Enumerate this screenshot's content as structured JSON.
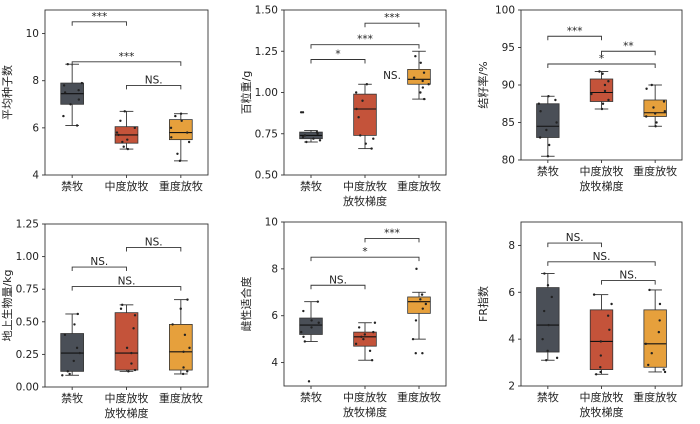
{
  "chart_data": [
    {
      "type": "box",
      "ylabel": "平均种子数",
      "xlabel": "",
      "ylim": [
        4,
        11
      ],
      "yticks": [
        "4",
        "6",
        "8",
        "10"
      ],
      "categories": [
        "禁牧",
        "中度放牧",
        "重度放牧"
      ],
      "colors": [
        "#4a4f57",
        "#c4533a",
        "#e6a03c"
      ],
      "boxes": [
        {
          "min": 6.1,
          "q1": 7.0,
          "median": 7.45,
          "q3": 7.9,
          "max": 8.7,
          "points": [
            6.1,
            6.5,
            7.0,
            7.2,
            7.5,
            7.6,
            7.8,
            7.9,
            8.7
          ]
        },
        {
          "min": 5.1,
          "q1": 5.35,
          "median": 5.7,
          "q3": 6.05,
          "max": 6.7,
          "points": [
            5.1,
            5.2,
            5.4,
            5.5,
            5.7,
            5.8,
            6.0,
            6.3,
            6.7
          ]
        },
        {
          "min": 4.6,
          "q1": 5.5,
          "median": 5.8,
          "q3": 6.35,
          "max": 6.6,
          "points": [
            4.6,
            4.9,
            5.4,
            5.6,
            5.8,
            6.0,
            6.3,
            6.5,
            6.6
          ]
        }
      ],
      "significance": [
        {
          "from": 0,
          "to": 1,
          "label": "***",
          "y": 10.5
        },
        {
          "from": 0,
          "to": 2,
          "label": "***",
          "y": 8.8
        },
        {
          "from": 1,
          "to": 2,
          "label": "NS.",
          "y": 7.8
        }
      ]
    },
    {
      "type": "box",
      "ylabel": "百粒重/g",
      "xlabel": "放牧梯度",
      "ylim": [
        0.5,
        1.5
      ],
      "yticks": [
        "0.50",
        "0.75",
        "1.00",
        "1.25",
        "1.50"
      ],
      "categories": [
        "禁牧",
        "中度放牧",
        "重度放牧"
      ],
      "colors": [
        "#4a4f57",
        "#c4533a",
        "#e6a03c"
      ],
      "boxes": [
        {
          "min": 0.7,
          "q1": 0.72,
          "median": 0.74,
          "q3": 0.76,
          "max": 0.77,
          "points": [
            0.7,
            0.71,
            0.72,
            0.73,
            0.74,
            0.75,
            0.76,
            0.88,
            0.88
          ]
        },
        {
          "min": 0.66,
          "q1": 0.74,
          "median": 0.9,
          "q3": 0.99,
          "max": 1.05,
          "points": [
            0.66,
            0.69,
            0.72,
            0.74,
            0.85,
            0.9,
            0.95,
            1.0,
            1.05
          ]
        },
        {
          "min": 0.96,
          "q1": 1.05,
          "median": 1.08,
          "q3": 1.14,
          "max": 1.25,
          "points": [
            0.96,
            1.0,
            1.03,
            1.05,
            1.07,
            1.09,
            1.12,
            1.18,
            1.22
          ]
        }
      ],
      "significance": [
        {
          "from": 1,
          "to": 2,
          "label": "***",
          "y": 1.42
        },
        {
          "from": 0,
          "to": 2,
          "label": "***",
          "y": 1.29
        },
        {
          "from": 0,
          "to": 1,
          "label": "*",
          "y": 1.2
        },
        {
          "label": "NS.",
          "y": 1.1,
          "x_between": [
            1,
            2
          ]
        }
      ]
    },
    {
      "type": "box",
      "ylabel": "结籽率/%",
      "xlabel": "放牧梯度",
      "ylim": [
        80,
        100
      ],
      "yticks": [
        "80",
        "85",
        "90",
        "95",
        "100"
      ],
      "categories": [
        "禁牧",
        "中度放牧",
        "重度放牧"
      ],
      "colors": [
        "#4a4f57",
        "#c4533a",
        "#e6a03c"
      ],
      "boxes": [
        {
          "min": 80.5,
          "q1": 83.0,
          "median": 84.5,
          "q3": 87.5,
          "max": 88.5,
          "points": [
            80.5,
            82.0,
            83.0,
            84.0,
            85.0,
            86.5,
            87.5,
            88.0,
            88.5
          ]
        },
        {
          "min": 86.8,
          "q1": 87.8,
          "median": 89.0,
          "q3": 90.8,
          "max": 91.8,
          "points": [
            86.8,
            87.5,
            88.0,
            88.8,
            89.2,
            90.0,
            90.5,
            91.5,
            91.8
          ]
        },
        {
          "min": 84.5,
          "q1": 85.8,
          "median": 86.3,
          "q3": 88.0,
          "max": 90.0,
          "points": [
            84.5,
            85.0,
            85.8,
            86.2,
            86.5,
            87.0,
            87.8,
            89.5,
            90.0
          ]
        }
      ],
      "significance": [
        {
          "from": 0,
          "to": 1,
          "label": "***",
          "y": 96.5
        },
        {
          "from": 1,
          "to": 2,
          "label": "**",
          "y": 94.5
        },
        {
          "from": 0,
          "to": 2,
          "label": "*",
          "y": 92.8
        }
      ]
    },
    {
      "type": "box",
      "ylabel": "地上生物量/kg",
      "xlabel": "放牧梯度",
      "ylim": [
        0,
        1.25
      ],
      "yticks": [
        "0.00",
        "0.25",
        "0.50",
        "0.75",
        "1.00",
        "1.25"
      ],
      "categories": [
        "禁牧",
        "中度放牧",
        "重度放牧"
      ],
      "colors": [
        "#4a4f57",
        "#c4533a",
        "#e6a03c"
      ],
      "boxes": [
        {
          "min": 0.09,
          "q1": 0.12,
          "median": 0.26,
          "q3": 0.41,
          "max": 0.56,
          "points": [
            0.09,
            0.1,
            0.12,
            0.2,
            0.26,
            0.3,
            0.4,
            0.48,
            0.56
          ]
        },
        {
          "min": 0.12,
          "q1": 0.13,
          "median": 0.26,
          "q3": 0.57,
          "max": 0.63,
          "points": [
            0.12,
            0.13,
            0.18,
            0.26,
            0.3,
            0.45,
            0.55,
            0.6,
            0.63
          ]
        },
        {
          "min": 0.1,
          "q1": 0.13,
          "median": 0.27,
          "q3": 0.48,
          "max": 0.67,
          "points": [
            0.1,
            0.12,
            0.15,
            0.27,
            0.3,
            0.4,
            0.48,
            0.6,
            0.67
          ]
        }
      ],
      "significance": [
        {
          "from": 1,
          "to": 2,
          "label": "NS.",
          "y": 1.07
        },
        {
          "from": 0,
          "to": 1,
          "label": "NS.",
          "y": 0.92
        },
        {
          "from": 0,
          "to": 2,
          "label": "NS.",
          "y": 0.77
        }
      ]
    },
    {
      "type": "box",
      "ylabel": "雌性适合度",
      "xlabel": "放牧梯度",
      "ylim": [
        3,
        10
      ],
      "yticks": [
        "4",
        "6",
        "8",
        "10"
      ],
      "categories": [
        "禁牧",
        "中度放牧",
        "重度放牧"
      ],
      "colors": [
        "#4a4f57",
        "#c4533a",
        "#e6a03c"
      ],
      "boxes": [
        {
          "min": 4.9,
          "q1": 5.2,
          "median": 5.6,
          "q3": 5.9,
          "max": 6.6,
          "points": [
            3.2,
            4.9,
            5.1,
            5.3,
            5.5,
            5.7,
            5.8,
            6.2,
            6.6
          ]
        },
        {
          "min": 4.1,
          "q1": 4.7,
          "median": 5.1,
          "q3": 5.3,
          "max": 5.7,
          "points": [
            4.1,
            4.5,
            4.8,
            5.0,
            5.1,
            5.2,
            5.3,
            5.5,
            5.7
          ]
        },
        {
          "min": 5.0,
          "q1": 6.1,
          "median": 6.6,
          "q3": 6.8,
          "max": 7.0,
          "points": [
            4.4,
            4.4,
            5.0,
            5.8,
            6.3,
            6.5,
            6.7,
            6.9,
            8.0
          ]
        }
      ],
      "significance": [
        {
          "from": 1,
          "to": 2,
          "label": "***",
          "y": 9.3
        },
        {
          "from": 0,
          "to": 2,
          "label": "*",
          "y": 8.5
        },
        {
          "from": 0,
          "to": 1,
          "label": "NS.",
          "y": 7.3
        }
      ]
    },
    {
      "type": "box",
      "ylabel": "FR指数",
      "xlabel": "放牧梯度",
      "ylim": [
        2,
        9
      ],
      "yticks": [
        "2",
        "4",
        "6",
        "8"
      ],
      "categories": [
        "禁牧",
        "中度放牧",
        "重度放牧"
      ],
      "colors": [
        "#4a4f57",
        "#c4533a",
        "#e6a03c"
      ],
      "boxes": [
        {
          "min": 3.1,
          "q1": 3.45,
          "median": 4.6,
          "q3": 6.2,
          "max": 6.8,
          "points": [
            3.1,
            3.2,
            3.5,
            4.0,
            4.6,
            5.2,
            5.8,
            6.3,
            6.8
          ]
        },
        {
          "min": 2.5,
          "q1": 2.7,
          "median": 3.9,
          "q3": 5.25,
          "max": 5.9,
          "points": [
            2.5,
            2.6,
            2.8,
            3.3,
            3.9,
            4.4,
            5.0,
            5.5,
            5.9
          ]
        },
        {
          "min": 2.6,
          "q1": 2.8,
          "median": 3.8,
          "q3": 5.25,
          "max": 6.1,
          "points": [
            2.6,
            2.7,
            2.9,
            3.4,
            3.8,
            4.3,
            4.8,
            5.5,
            6.1
          ]
        }
      ],
      "significance": [
        {
          "from": 0,
          "to": 1,
          "label": "NS.",
          "y": 8.1
        },
        {
          "from": 0,
          "to": 2,
          "label": "NS.",
          "y": 7.3
        },
        {
          "from": 1,
          "to": 2,
          "label": "NS.",
          "y": 6.5
        }
      ]
    }
  ]
}
